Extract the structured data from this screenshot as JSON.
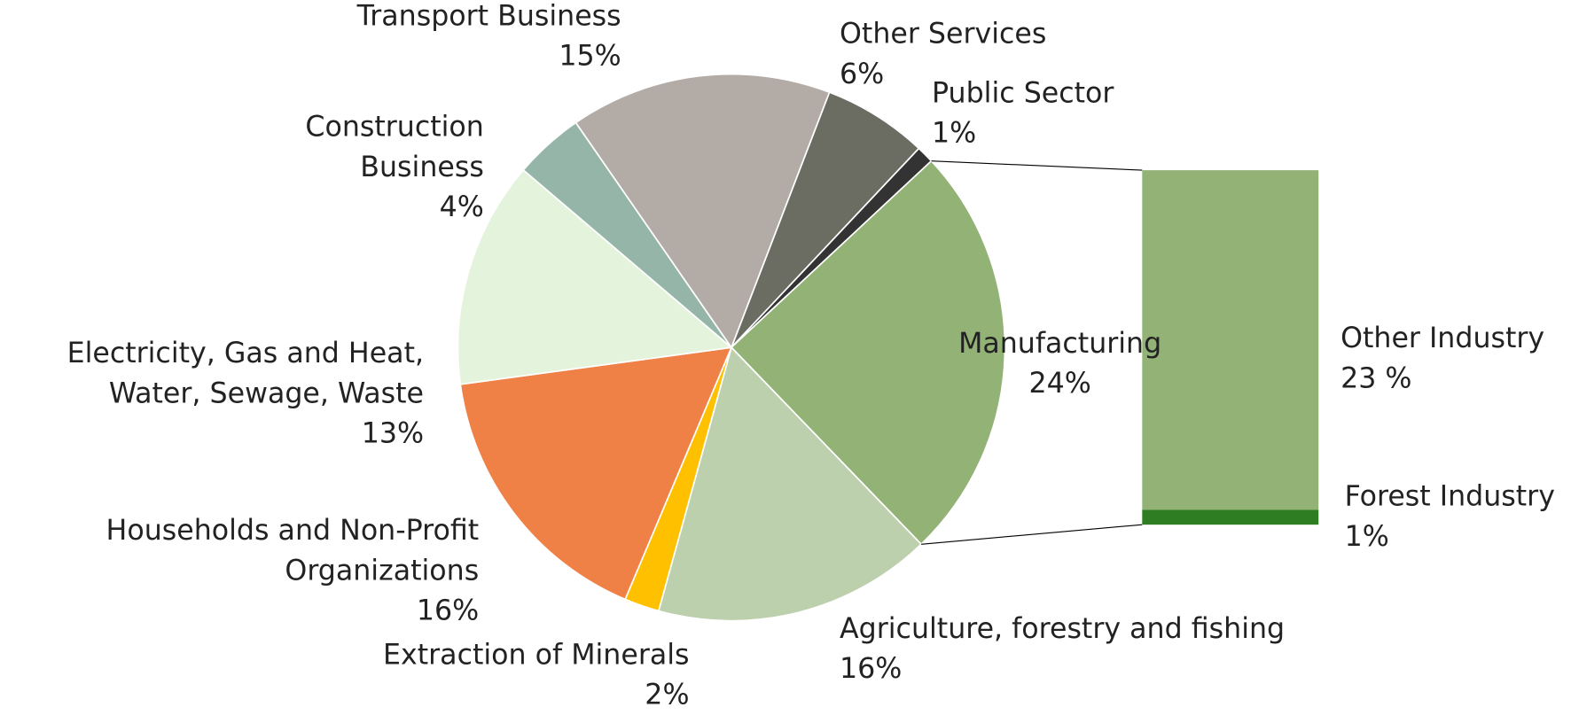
{
  "chart_data": [
    {
      "type": "pie",
      "categories": [
        "Other Services",
        "Public Sector",
        "Manufacturing",
        "Agriculture, forestry and fishing",
        "Extraction of Minerals",
        "Households and Non-Profit Organizations",
        "Electricity, Gas and Heat, Water, Sewage, Waste",
        "Construction Business",
        "Transport Business"
      ],
      "values": [
        6,
        1,
        24,
        16,
        2,
        16,
        13,
        4,
        15
      ],
      "value_labels": [
        "6%",
        "1%",
        "24%",
        "16%",
        "2%",
        "16%",
        "13%",
        "4%",
        "15%"
      ],
      "colors": [
        "#6b6d63",
        "#333333",
        "#93b376",
        "#bdd0ae",
        "#ffc000",
        "#f08146",
        "#e4f4dc",
        "#95b5a8",
        "#b3aca6"
      ]
    },
    {
      "type": "bar",
      "categories": [
        "Forest Industry",
        "Other Industry"
      ],
      "values": [
        1,
        23
      ],
      "value_labels": [
        "1%",
        "23 %"
      ],
      "colors": [
        "#2e7d22",
        "#93b376"
      ]
    }
  ]
}
